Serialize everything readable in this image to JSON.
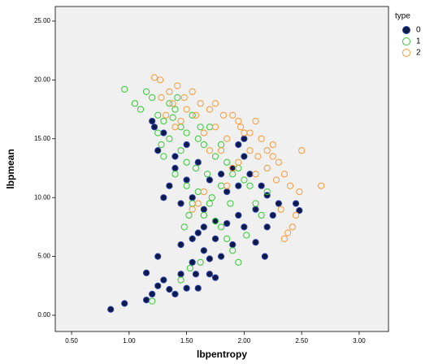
{
  "chart_data": {
    "type": "scatter",
    "x_label": "lbpentropy",
    "y_label": "lbpmean",
    "legend_title": "type",
    "xlim": [
      0.358,
      3.255
    ],
    "ylim": [
      -1.38,
      26.24
    ],
    "xticks": [
      {
        "value": 0.5,
        "label": "0.50"
      },
      {
        "value": 1,
        "label": "1.00"
      },
      {
        "value": 1.5,
        "label": "1.50"
      },
      {
        "value": 2,
        "label": "2.00"
      },
      {
        "value": 2.5,
        "label": "2.50"
      },
      {
        "value": 3,
        "label": "3.00"
      }
    ],
    "yticks": [
      {
        "value": 0,
        "label": "0.00"
      },
      {
        "value": 5,
        "label": "5.00"
      },
      {
        "value": 10,
        "label": "10.00"
      },
      {
        "value": 15,
        "label": "15.00"
      },
      {
        "value": 20,
        "label": "20.00"
      },
      {
        "value": 25,
        "label": "25.00"
      }
    ],
    "series": [
      {
        "name": "0",
        "color": "#0d1a4a",
        "edge": "#2a3fb0",
        "filled": true,
        "x": [
          0.84,
          0.96,
          1.15,
          1.2,
          1.25,
          1.3,
          1.35,
          1.4,
          1.45,
          1.5,
          1.55,
          1.6,
          1.65,
          1.7,
          1.75,
          1.8,
          1.85,
          1.9,
          1.95,
          2.0,
          2.1,
          2.18,
          2.2,
          2.3,
          2.45,
          2.48,
          1.15,
          1.25,
          1.3,
          1.35,
          1.4,
          1.45,
          1.5,
          1.55,
          1.6,
          1.65,
          1.7,
          1.75,
          1.8,
          1.85,
          1.9,
          1.95,
          2.0,
          2.05,
          2.1,
          2.15,
          2.2,
          2.25,
          1.2,
          1.25,
          1.3,
          1.4,
          1.5,
          1.6,
          1.65,
          1.55,
          1.45,
          1.7,
          1.58,
          1.75,
          1.22,
          1.95,
          2.0
        ],
        "values": [
          0.5,
          1.0,
          1.3,
          1.8,
          2.5,
          3.0,
          2.2,
          1.8,
          3.5,
          2.3,
          4.5,
          2.3,
          5.5,
          3.5,
          6.5,
          5.0,
          7.8,
          6.0,
          8.5,
          7.5,
          6.2,
          5.0,
          7.5,
          9.5,
          9.5,
          8.9,
          3.6,
          5.0,
          10.0,
          11.0,
          12.5,
          9.5,
          11.5,
          10.0,
          13.0,
          9.0,
          11.5,
          8.0,
          12.0,
          10.5,
          12.5,
          11.0,
          13.5,
          12.0,
          9.0,
          11.0,
          10.2,
          8.5,
          16.5,
          14.0,
          15.5,
          13.5,
          14.5,
          7.0,
          7.5,
          6.5,
          6.0,
          4.8,
          3.5,
          3.2,
          16.0,
          14.5,
          15.0
        ]
      },
      {
        "name": "1",
        "color": "#33cc33",
        "filled": false,
        "x": [
          0.96,
          1.05,
          1.1,
          1.15,
          1.2,
          1.25,
          1.3,
          1.35,
          1.4,
          1.45,
          1.5,
          1.55,
          1.6,
          1.65,
          1.7,
          1.75,
          1.8,
          1.85,
          1.9,
          1.95,
          2.0,
          1.3,
          1.4,
          1.5,
          1.55,
          1.6,
          1.65,
          1.7,
          1.75,
          1.8,
          1.85,
          1.9,
          1.95,
          1.62,
          1.53,
          1.45,
          1.2,
          2.05,
          2.1,
          2.15,
          2.2,
          1.35,
          1.45,
          1.5,
          1.58,
          1.25,
          1.28,
          1.42,
          1.38,
          1.62,
          1.68,
          1.72,
          1.8,
          1.88,
          2.02,
          1.48,
          1.52
        ],
        "values": [
          19.2,
          18.0,
          17.5,
          19.0,
          18.5,
          17.0,
          16.5,
          18.0,
          17.5,
          16.0,
          15.5,
          17.0,
          15.0,
          14.5,
          16.0,
          13.5,
          14.5,
          13.0,
          12.0,
          12.5,
          11.5,
          13.5,
          12.0,
          11.0,
          9.5,
          10.5,
          8.5,
          9.5,
          8.0,
          7.5,
          6.5,
          5.5,
          4.5,
          4.5,
          4.0,
          3.0,
          1.2,
          11.0,
          9.5,
          8.5,
          10.5,
          15.0,
          14.0,
          13.0,
          12.5,
          15.5,
          14.5,
          18.5,
          16.8,
          16.0,
          12.0,
          10.0,
          11.0,
          9.5,
          6.8,
          7.5,
          8.5
        ]
      },
      {
        "name": "2",
        "color": "#ff9933",
        "filled": false,
        "x": [
          1.22,
          1.27,
          1.35,
          1.42,
          1.48,
          1.55,
          1.62,
          1.7,
          1.75,
          1.82,
          1.9,
          1.97,
          2.05,
          2.1,
          2.15,
          2.2,
          2.25,
          2.3,
          2.35,
          2.4,
          2.48,
          2.5,
          2.67,
          2.45,
          2.42,
          2.35,
          2.38,
          2.32,
          2.28,
          2.2,
          2.12,
          2.05,
          2.0,
          1.95,
          1.85,
          1.8,
          1.75,
          1.65,
          1.58,
          1.5,
          1.45,
          1.38,
          1.32,
          1.28,
          1.9,
          1.85,
          1.95,
          2.1,
          2.25,
          1.6,
          1.55,
          1.65,
          1.4,
          1.7
        ],
        "values": [
          20.2,
          20.0,
          19.0,
          19.5,
          18.5,
          19.0,
          18.0,
          17.5,
          18.0,
          17.0,
          17.0,
          16.0,
          15.5,
          16.5,
          15.0,
          14.0,
          13.5,
          13.0,
          12.0,
          11.0,
          10.5,
          14.0,
          11.0,
          8.5,
          7.5,
          6.5,
          7.0,
          9.0,
          11.5,
          12.5,
          13.5,
          14.0,
          15.5,
          16.5,
          15.0,
          14.0,
          16.0,
          15.5,
          17.0,
          17.5,
          16.5,
          18.0,
          17.0,
          18.5,
          12.5,
          11.0,
          13.0,
          12.0,
          14.5,
          9.5,
          9.0,
          10.5,
          16.0,
          14.0
        ]
      }
    ]
  }
}
